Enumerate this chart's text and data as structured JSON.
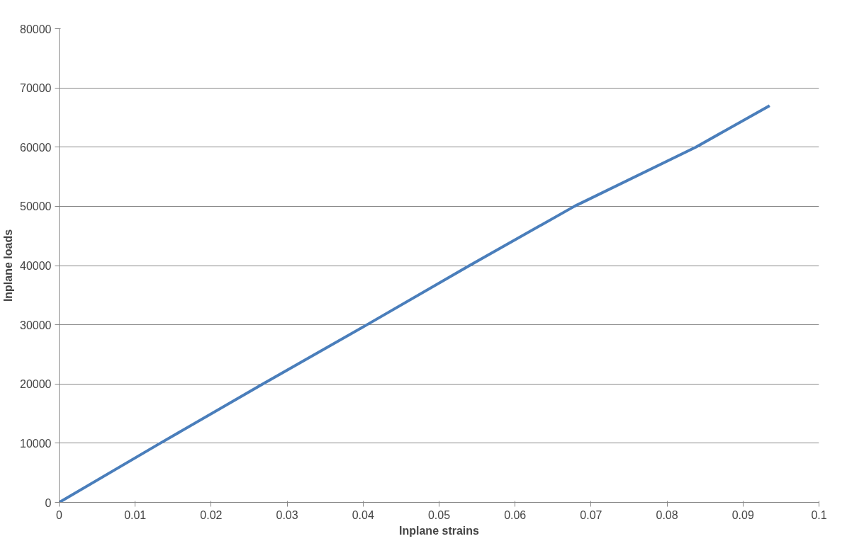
{
  "chart_data": {
    "type": "line",
    "xlabel": "Inplane strains",
    "ylabel": "Inplane loads",
    "x": [
      0,
      0.0133,
      0.0268,
      0.0405,
      0.054,
      0.0678,
      0.0838,
      0.0935
    ],
    "series": [
      {
        "color": "#4a7ebb",
        "values": [
          0,
          10000,
          20000,
          30000,
          40000,
          50000,
          60000,
          67000
        ]
      }
    ],
    "xlim": [
      0,
      0.1
    ],
    "xticks": [
      0,
      0.01,
      0.02,
      0.03,
      0.04,
      0.05,
      0.06,
      0.07,
      0.08,
      0.09,
      0.1
    ],
    "ylim": [
      0,
      80000
    ],
    "yticks": [
      0,
      10000,
      20000,
      30000,
      40000,
      50000,
      60000,
      70000,
      80000
    ],
    "grid": "y",
    "marker": "none",
    "line_style": "solid"
  }
}
